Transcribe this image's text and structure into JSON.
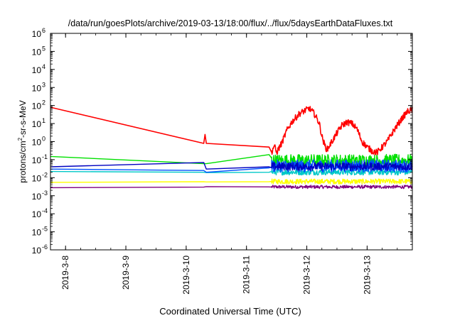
{
  "chart_data": {
    "type": "line",
    "title": "/data/run/goesPlots/archive/2019-03-13/18:00/flux/../flux/5daysEarthDataFluxes.txt",
    "xlabel": "Coordinated Universal Time (UTC)",
    "ylabel": {
      "pre": "protons/cm",
      "sup": "2",
      "post": "-sr-s-MeV"
    },
    "yscale": "log",
    "ylim": [
      1e-06,
      1000000.0
    ],
    "xlim": [
      "2019-03-07 18:00",
      "2019-03-13 18:00"
    ],
    "grid": false,
    "legend": "none",
    "x_ticks": [
      {
        "date": "2019-03-08 00:00",
        "label": "2019-3-8"
      },
      {
        "date": "2019-03-09 00:00",
        "label": "2019-3-9"
      },
      {
        "date": "2019-03-10 00:00",
        "label": "2019-3-10"
      },
      {
        "date": "2019-03-11 00:00",
        "label": "2019-3-11"
      },
      {
        "date": "2019-03-12 00:00",
        "label": "2019-3-12"
      },
      {
        "date": "2019-03-13 00:00",
        "label": "2019-3-13"
      }
    ],
    "y_ticks": [
      {
        "exp": "6",
        "value": 1000000.0
      },
      {
        "exp": "5",
        "value": 100000.0
      },
      {
        "exp": "4",
        "value": 10000.0
      },
      {
        "exp": "3",
        "value": 1000.0
      },
      {
        "exp": "2",
        "value": 100.0
      },
      {
        "exp": "1",
        "value": 10.0
      },
      {
        "exp": "0",
        "value": 1
      },
      {
        "exp": "-1",
        "value": 0.1
      },
      {
        "exp": "-2",
        "value": 0.01
      },
      {
        "exp": "-3",
        "value": 0.001
      },
      {
        "exp": "-4",
        "value": 0.0001
      },
      {
        "exp": "-5",
        "value": 1e-05
      },
      {
        "exp": "-6",
        "value": 1e-06
      }
    ],
    "series": [
      {
        "color": "#800080",
        "x": [
          "2019-03-07 18:00",
          "2019-03-10 07:00",
          "2019-03-10 08:00",
          "2019-03-11 09:00",
          "2019-03-11 10:00",
          "2019-03-11 12:00",
          "2019-03-11 18:00",
          "2019-03-12 00:00",
          "2019-03-12 06:00",
          "2019-03-12 12:00",
          "2019-03-12 18:00",
          "2019-03-13 00:00",
          "2019-03-13 06:00",
          "2019-03-13 12:00",
          "2019-03-13 18:00"
        ],
        "y": [
          0.0028,
          0.003,
          0.0032,
          0.0031,
          0.003,
          0.0032,
          0.003,
          0.0031,
          0.0029,
          0.0032,
          0.003,
          0.0031,
          0.003,
          0.0029,
          0.003
        ],
        "noise_hours": [
          [
            "2019-03-11 10:00",
            "2019-03-13 18:00"
          ]
        ],
        "noise_lo": 0.0025,
        "noise_hi": 0.0038
      },
      {
        "color": "#ffff00",
        "x": [
          "2019-03-07 18:00",
          "2019-03-10 07:00",
          "2019-03-10 08:00",
          "2019-03-11 09:00",
          "2019-03-11 10:00",
          "2019-03-12 00:00",
          "2019-03-12 12:00",
          "2019-03-13 00:00",
          "2019-03-13 18:00"
        ],
        "y": [
          0.0055,
          0.006,
          0.0058,
          0.006,
          0.0062,
          0.006,
          0.0058,
          0.006,
          0.006
        ],
        "noise_hours": [
          [
            "2019-03-11 10:00",
            "2019-03-13 18:00"
          ]
        ],
        "noise_lo": 0.0045,
        "noise_hi": 0.0085
      },
      {
        "color": "#00c8c8",
        "x": [
          "2019-03-07 18:00",
          "2019-03-10 07:00",
          "2019-03-10 08:00",
          "2019-03-11 09:00",
          "2019-03-11 10:00",
          "2019-03-12 00:00",
          "2019-03-13 00:00",
          "2019-03-13 18:00"
        ],
        "y": [
          0.022,
          0.02,
          0.019,
          0.02,
          0.022,
          0.021,
          0.02,
          0.021
        ],
        "noise_hours": [
          [
            "2019-03-11 10:00",
            "2019-03-13 18:00"
          ]
        ],
        "noise_lo": 0.014,
        "noise_hi": 0.03
      },
      {
        "color": "#00e000",
        "x": [
          "2019-03-07 18:00",
          "2019-03-10 07:00",
          "2019-03-10 08:00",
          "2019-03-11 09:00",
          "2019-03-11 10:00",
          "2019-03-12 00:00",
          "2019-03-13 00:00",
          "2019-03-13 18:00"
        ],
        "y": [
          0.15,
          0.06,
          0.06,
          0.19,
          0.12,
          0.1,
          0.11,
          0.1
        ],
        "noise_hours": [
          [
            "2019-03-11 10:00",
            "2019-03-13 18:00"
          ]
        ],
        "noise_lo": 0.04,
        "noise_hi": 0.2
      },
      {
        "color": "#0050ff",
        "x": [
          "2019-03-07 18:00",
          "2019-03-10 07:00",
          "2019-03-10 08:00",
          "2019-03-11 09:00",
          "2019-03-11 10:00",
          "2019-03-12 00:00",
          "2019-03-13 00:00",
          "2019-03-13 18:00"
        ],
        "y": [
          0.03,
          0.025,
          0.02,
          0.035,
          0.04,
          0.04,
          0.035,
          0.04
        ],
        "noise_hours": [
          [
            "2019-03-11 10:00",
            "2019-03-13 18:00"
          ]
        ],
        "noise_lo": 0.02,
        "noise_hi": 0.1
      },
      {
        "color": "#0000c0",
        "x": [
          "2019-03-07 18:00",
          "2019-03-10 07:00",
          "2019-03-10 08:00",
          "2019-03-11 09:00",
          "2019-03-11 10:00",
          "2019-03-12 00:00",
          "2019-03-13 00:00",
          "2019-03-13 18:00"
        ],
        "y": [
          0.04,
          0.07,
          0.03,
          0.04,
          0.035,
          0.04,
          0.04,
          0.045
        ],
        "noise_hours": [
          [
            "2019-03-11 10:00",
            "2019-03-13 18:00"
          ]
        ],
        "noise_lo": 0.025,
        "noise_hi": 0.07
      },
      {
        "color": "#ff0000",
        "x": [
          "2019-03-07 18:00",
          "2019-03-10 07:00",
          "2019-03-10 07:30",
          "2019-03-10 08:00",
          "2019-03-11 09:00",
          "2019-03-11 10:00",
          "2019-03-11 11:00",
          "2019-03-11 12:00",
          "2019-03-11 14:00",
          "2019-03-11 16:00",
          "2019-03-11 18:00",
          "2019-03-11 21:00",
          "2019-03-11 23:00",
          "2019-03-12 01:00",
          "2019-03-12 03:00",
          "2019-03-12 05:00",
          "2019-03-12 06:00",
          "2019-03-12 07:00",
          "2019-03-12 08:00",
          "2019-03-12 10:00",
          "2019-03-12 12:00",
          "2019-03-12 14:00",
          "2019-03-12 16:00",
          "2019-03-12 18:00",
          "2019-03-12 20:00",
          "2019-03-12 22:00",
          "2019-03-13 00:00",
          "2019-03-13 02:00",
          "2019-03-13 04:00",
          "2019-03-13 06:00",
          "2019-03-13 08:00",
          "2019-03-13 10:00",
          "2019-03-13 12:00",
          "2019-03-13 14:00",
          "2019-03-13 16:00",
          "2019-03-13 18:00"
        ],
        "y": [
          80,
          0.8,
          2.5,
          0.8,
          0.5,
          0.25,
          0.6,
          0.25,
          0.8,
          4,
          12,
          35,
          50,
          70,
          35,
          10,
          2,
          0.7,
          0.35,
          1,
          3,
          8,
          12,
          10,
          5,
          1,
          0.5,
          0.3,
          0.25,
          0.5,
          1,
          3,
          8,
          20,
          45,
          60
        ],
        "noise_hours": [
          [
            "2019-03-11 10:00",
            "2019-03-13 18:00"
          ]
        ],
        "noise_rel": 0.35
      }
    ]
  }
}
